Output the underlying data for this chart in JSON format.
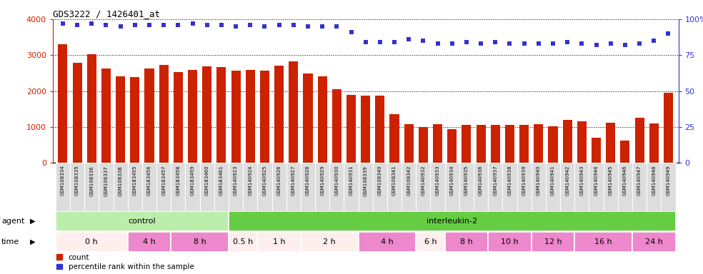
{
  "title": "GDS3222 / 1426401_at",
  "bar_color": "#cc2200",
  "dot_color": "#3333cc",
  "ylim_left": [
    0,
    4000
  ],
  "ylim_right": [
    0,
    100
  ],
  "yticks_left": [
    0,
    1000,
    2000,
    3000,
    4000
  ],
  "yticks_right": [
    0,
    25,
    50,
    75,
    100
  ],
  "ytick_right_labels": [
    "0",
    "25",
    "50",
    "75",
    "100%"
  ],
  "samples": [
    "GSM108334",
    "GSM108335",
    "GSM108336",
    "GSM108337",
    "GSM108338",
    "GSM183455",
    "GSM183456",
    "GSM183457",
    "GSM183458",
    "GSM183459",
    "GSM183460",
    "GSM183461",
    "GSM140923",
    "GSM140924",
    "GSM140925",
    "GSM140926",
    "GSM140927",
    "GSM140928",
    "GSM140929",
    "GSM140930",
    "GSM140931",
    "GSM108339",
    "GSM108340",
    "GSM108341",
    "GSM108342",
    "GSM140932",
    "GSM140933",
    "GSM140934",
    "GSM140935",
    "GSM140936",
    "GSM140937",
    "GSM140938",
    "GSM140939",
    "GSM140940",
    "GSM140941",
    "GSM140942",
    "GSM140943",
    "GSM140944",
    "GSM140945",
    "GSM140946",
    "GSM140947",
    "GSM140948",
    "GSM140949"
  ],
  "bar_values": [
    3300,
    2780,
    3020,
    2620,
    2420,
    2390,
    2620,
    2720,
    2530,
    2580,
    2680,
    2670,
    2560,
    2590,
    2560,
    2700,
    2830,
    2480,
    2420,
    2050,
    1900,
    1880,
    1870,
    1360,
    1080,
    1010,
    1080,
    940,
    1060,
    1060,
    1060,
    1060,
    1060,
    1080,
    1030,
    1200,
    1160,
    700,
    1130,
    620,
    1260,
    1100,
    1950
  ],
  "percentile_values": [
    97,
    96,
    97,
    96,
    95,
    96,
    96,
    96,
    96,
    97,
    96,
    96,
    95,
    96,
    95,
    96,
    96,
    95,
    95,
    95,
    91,
    84,
    84,
    84,
    86,
    85,
    83,
    83,
    84,
    83,
    84,
    83,
    83,
    83,
    83,
    84,
    83,
    82,
    83,
    82,
    83,
    85,
    90
  ],
  "agent_groups": [
    {
      "label": "control",
      "start": 0,
      "end": 12,
      "color": "#bbeeaa"
    },
    {
      "label": "interleukin-2",
      "start": 12,
      "end": 43,
      "color": "#66cc44"
    }
  ],
  "time_groups": [
    {
      "label": "0 h",
      "start": 0,
      "end": 5,
      "color": "#ffeeee"
    },
    {
      "label": "4 h",
      "start": 5,
      "end": 8,
      "color": "#ee88cc"
    },
    {
      "label": "8 h",
      "start": 8,
      "end": 12,
      "color": "#ee88cc"
    },
    {
      "label": "0.5 h",
      "start": 12,
      "end": 14,
      "color": "#ffeeee"
    },
    {
      "label": "1 h",
      "start": 14,
      "end": 17,
      "color": "#ffeeee"
    },
    {
      "label": "2 h",
      "start": 17,
      "end": 21,
      "color": "#ffeeee"
    },
    {
      "label": "4 h",
      "start": 21,
      "end": 25,
      "color": "#ee88cc"
    },
    {
      "label": "6 h",
      "start": 25,
      "end": 27,
      "color": "#ffeeee"
    },
    {
      "label": "8 h",
      "start": 27,
      "end": 30,
      "color": "#ee88cc"
    },
    {
      "label": "10 h",
      "start": 30,
      "end": 33,
      "color": "#ee88cc"
    },
    {
      "label": "12 h",
      "start": 33,
      "end": 36,
      "color": "#ee88cc"
    },
    {
      "label": "16 h",
      "start": 36,
      "end": 40,
      "color": "#ee88cc"
    },
    {
      "label": "24 h",
      "start": 40,
      "end": 43,
      "color": "#ee88cc"
    }
  ],
  "xticklabel_bg": "#dddddd",
  "agent_label": "agent",
  "time_label": "time"
}
